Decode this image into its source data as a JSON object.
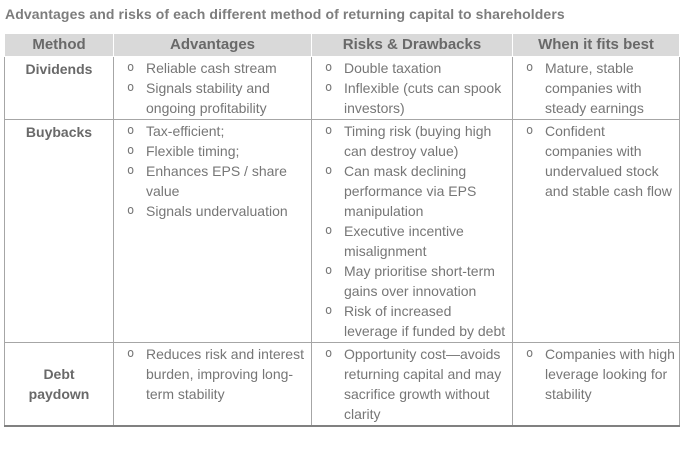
{
  "title": "Advantages and risks of each different method of returning capital to shareholders",
  "palette": {
    "header_bg": "#d9d9d9",
    "border": "#a6a6a6",
    "border_strong": "#808080",
    "title_text": "#7d7d7d",
    "header_text": "#696969",
    "body_text": "#767676"
  },
  "table": {
    "bullet_char": "o",
    "headers": [
      "Method",
      "Advantages",
      "Risks & Drawbacks",
      "When it fits best"
    ],
    "rows": [
      {
        "method": "Dividends",
        "advantages": [
          "Reliable cash stream",
          "Signals stability and ongoing profitability"
        ],
        "risks": [
          "Double taxation",
          "Inflexible (cuts can spook investors)"
        ],
        "fits_best": [
          "Mature, stable companies with steady earnings"
        ]
      },
      {
        "method": "Buybacks",
        "advantages": [
          "Tax-efficient;",
          "Flexible timing;",
          "Enhances EPS / share value",
          "Signals undervaluation"
        ],
        "risks": [
          "Timing risk (buying high can destroy value)",
          "Can mask declining performance via EPS manipulation",
          "Executive incentive misalignment",
          "May prioritise short-term gains over innovation",
          "Risk of increased leverage if funded by debt"
        ],
        "fits_best": [
          "Confident companies with undervalued stock and stable cash flow"
        ]
      },
      {
        "method": "Debt paydown",
        "advantages": [
          "Reduces risk and interest burden, improving long-term stability"
        ],
        "risks": [
          "Opportunity cost—avoids returning capital and may sacrifice growth without clarity"
        ],
        "fits_best": [
          "Companies with high leverage looking for stability"
        ]
      }
    ]
  }
}
